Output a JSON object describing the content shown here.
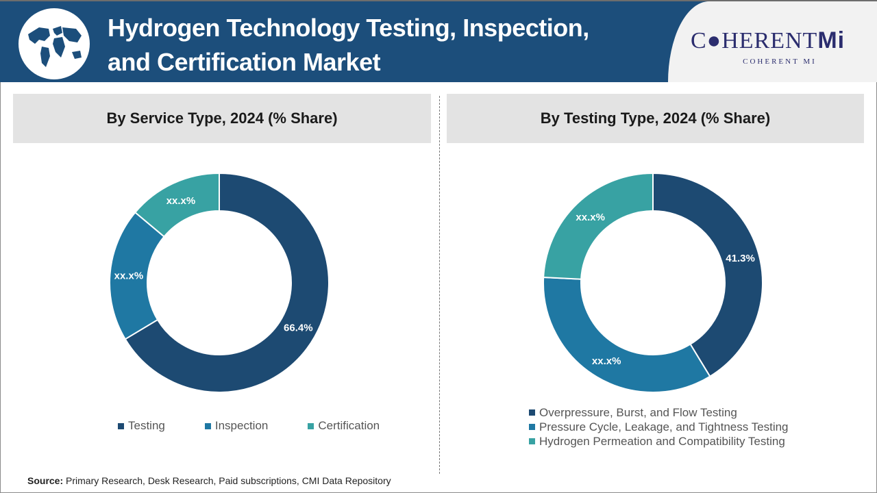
{
  "header": {
    "title_line1": "Hydrogen Technology Testing, Inspection,",
    "title_line2": "and Certification Market",
    "brand": "COHERENT MI",
    "brand_main": "C●HERENT",
    "brand_suffix": "Mi"
  },
  "colors": {
    "header": "#1c4e7b",
    "series": [
      "#1d4a72",
      "#1f78a3",
      "#38a2a3"
    ]
  },
  "chart_data": [
    {
      "type": "pie",
      "donut": true,
      "title": "By Service Type, 2024 (% Share)",
      "categories": [
        "Testing",
        "Inspection",
        "Certification"
      ],
      "values": [
        66.4,
        19.7,
        13.9
      ],
      "data_labels": [
        "66.4%",
        "xx.x%",
        "xx.x%"
      ],
      "legend": "bottom"
    },
    {
      "type": "pie",
      "donut": true,
      "title": "By Testing Type, 2024 (% Share)",
      "categories": [
        "Overpressure, Burst, and Flow Testing",
        "Pressure Cycle, Leakage, and Tightness Testing",
        "Hydrogen Permeation and Compatibility Testing"
      ],
      "values": [
        41.3,
        34.5,
        24.2
      ],
      "data_labels": [
        "41.3%",
        "xx.x%",
        "xx.x%"
      ],
      "legend": "bottom"
    }
  ],
  "footer": {
    "source_label": "Source:",
    "source_text": " Primary Research, Desk Research, Paid subscriptions, CMI Data Repository"
  }
}
